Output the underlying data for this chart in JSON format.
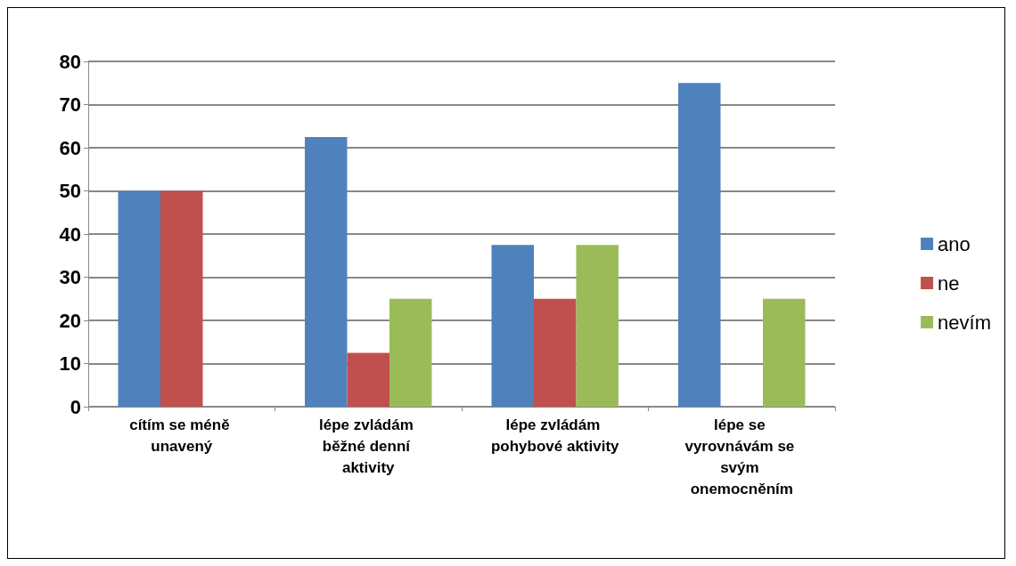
{
  "chart_data": {
    "type": "bar",
    "categories": [
      "cítím se méně unavený",
      "lépe zvládám běžné denní aktivity",
      "lépe zvládám pohybové aktivity",
      "lépe se vyrovnávám se svým onemocněním"
    ],
    "series": [
      {
        "name": "ano",
        "color": "#4f81bd",
        "values": [
          50,
          62.5,
          37.5,
          75
        ]
      },
      {
        "name": "ne",
        "color": "#c0504d",
        "values": [
          50,
          12.5,
          25,
          0
        ]
      },
      {
        "name": "nevím",
        "color": "#9bbb59",
        "values": [
          0,
          25,
          37.5,
          25
        ]
      }
    ],
    "ylim": [
      0,
      80
    ],
    "yticks": [
      0,
      10,
      20,
      30,
      40,
      50,
      60,
      70,
      80
    ],
    "grid": "y",
    "legend": "right"
  }
}
